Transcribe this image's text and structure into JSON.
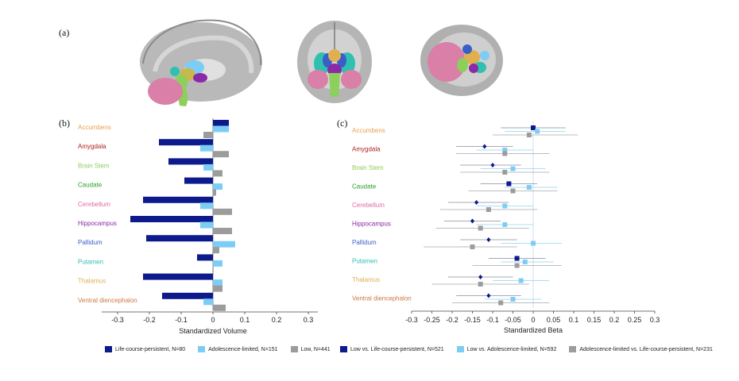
{
  "labels": {
    "a": "(a)",
    "b": "(b)",
    "c": "(c)"
  },
  "regions": [
    {
      "name": "Accumbens",
      "color": "#e8a050"
    },
    {
      "name": "Amygdala",
      "color": "#b01e1e"
    },
    {
      "name": "Brain Stem",
      "color": "#8ccf5a"
    },
    {
      "name": "Caudate",
      "color": "#2aa12a"
    },
    {
      "name": "Cerebellum",
      "color": "#e56aa0"
    },
    {
      "name": "Hippocampus",
      "color": "#8a2aa6"
    },
    {
      "name": "Pallidum",
      "color": "#3a5ec9"
    },
    {
      "name": "Putamen",
      "color": "#2fc0b0"
    },
    {
      "name": "Thalamus",
      "color": "#e0b050"
    },
    {
      "name": "Ventral diencephalon",
      "color": "#cc7a44"
    }
  ],
  "colors": {
    "navy": "#0d1a8c",
    "light": "#7ccdf5",
    "gray": "#9c9c9c"
  },
  "chart_data": [
    {
      "type": "bar",
      "orientation": "horizontal",
      "xlabel": "Standardized Volume",
      "xlim": [
        -0.35,
        0.35
      ],
      "xticks": [
        "-0.3",
        "-0.2",
        "-0.1",
        "0",
        "0.1",
        "0.2",
        "0.3"
      ],
      "xtick_values": [
        -0.3,
        -0.2,
        -0.1,
        0,
        0.1,
        0.2,
        0.3
      ],
      "categories": [
        "Accumbens",
        "Amygdala",
        "Brain Stem",
        "Caudate",
        "Cerebellum",
        "Hippocampus",
        "Pallidum",
        "Putamen",
        "Thalamus",
        "Ventral diencephalon"
      ],
      "series": [
        {
          "name": "Life-course-persistent, N=80",
          "values": [
            0.05,
            -0.17,
            -0.14,
            -0.09,
            -0.22,
            -0.26,
            -0.21,
            -0.05,
            -0.22,
            -0.16
          ]
        },
        {
          "name": "Adolescence-limited, N=151",
          "values": [
            0.05,
            -0.04,
            -0.03,
            0.03,
            -0.04,
            -0.04,
            0.07,
            0.03,
            0.03,
            -0.03
          ]
        },
        {
          "name": "Low, N=441",
          "values": [
            -0.03,
            0.05,
            0.03,
            0.01,
            0.06,
            0.06,
            0.02,
            0.0,
            0.03,
            0.04
          ]
        }
      ]
    },
    {
      "type": "scatter",
      "subtype": "forest",
      "xlabel": "Standardized Beta",
      "xlim": [
        -0.3,
        0.3
      ],
      "xticks": [
        "-0.3",
        "-0.25",
        "-0.2",
        "-0.15",
        "-0.1",
        "-0.05",
        "0",
        "0.05",
        "0.1",
        "0.15",
        "0.2",
        "0.25",
        "0.3"
      ],
      "xtick_values": [
        -0.3,
        -0.25,
        -0.2,
        -0.15,
        -0.1,
        -0.05,
        0,
        0.05,
        0.1,
        0.15,
        0.2,
        0.25,
        0.3
      ],
      "categories": [
        "Accumbens",
        "Amygdala",
        "Brain Stem",
        "Caudate",
        "Cerebellum",
        "Hippocampus",
        "Pallidum",
        "Putamen",
        "Thalamus",
        "Ventral diencephalon"
      ],
      "series": [
        {
          "name": "Low vs. Life-course-persistent, N=521",
          "estimates": [
            0.0,
            -0.12,
            -0.1,
            -0.06,
            -0.14,
            -0.15,
            -0.11,
            -0.04,
            -0.13,
            -0.11
          ],
          "ci_low": [
            -0.08,
            -0.19,
            -0.18,
            -0.13,
            -0.21,
            -0.22,
            -0.18,
            -0.11,
            -0.21,
            -0.19
          ],
          "ci_high": [
            0.08,
            -0.05,
            -0.03,
            0.01,
            -0.06,
            -0.08,
            -0.04,
            0.03,
            -0.05,
            -0.03
          ]
        },
        {
          "name": "Low vs. Adolescence-limited, N=592",
          "estimates": [
            0.01,
            -0.07,
            -0.05,
            -0.01,
            -0.07,
            -0.07,
            0.0,
            -0.02,
            -0.03,
            -0.05
          ],
          "ci_low": [
            -0.07,
            -0.14,
            -0.13,
            -0.07,
            -0.14,
            -0.14,
            -0.08,
            -0.08,
            -0.1,
            -0.12
          ],
          "ci_high": [
            0.08,
            0.0,
            0.03,
            0.06,
            0.0,
            0.0,
            0.07,
            0.05,
            0.04,
            0.02
          ]
        },
        {
          "name": "Adolescence-limited vs. Life-course-persistent, N=231",
          "estimates": [
            -0.01,
            -0.07,
            -0.07,
            -0.05,
            -0.11,
            -0.13,
            -0.15,
            -0.04,
            -0.13,
            -0.08
          ],
          "ci_low": [
            -0.1,
            -0.19,
            -0.18,
            -0.16,
            -0.23,
            -0.24,
            -0.27,
            -0.15,
            -0.25,
            -0.2
          ],
          "ci_high": [
            0.11,
            0.04,
            0.04,
            0.06,
            0.01,
            -0.01,
            -0.04,
            0.07,
            -0.01,
            0.04
          ]
        }
      ]
    }
  ]
}
